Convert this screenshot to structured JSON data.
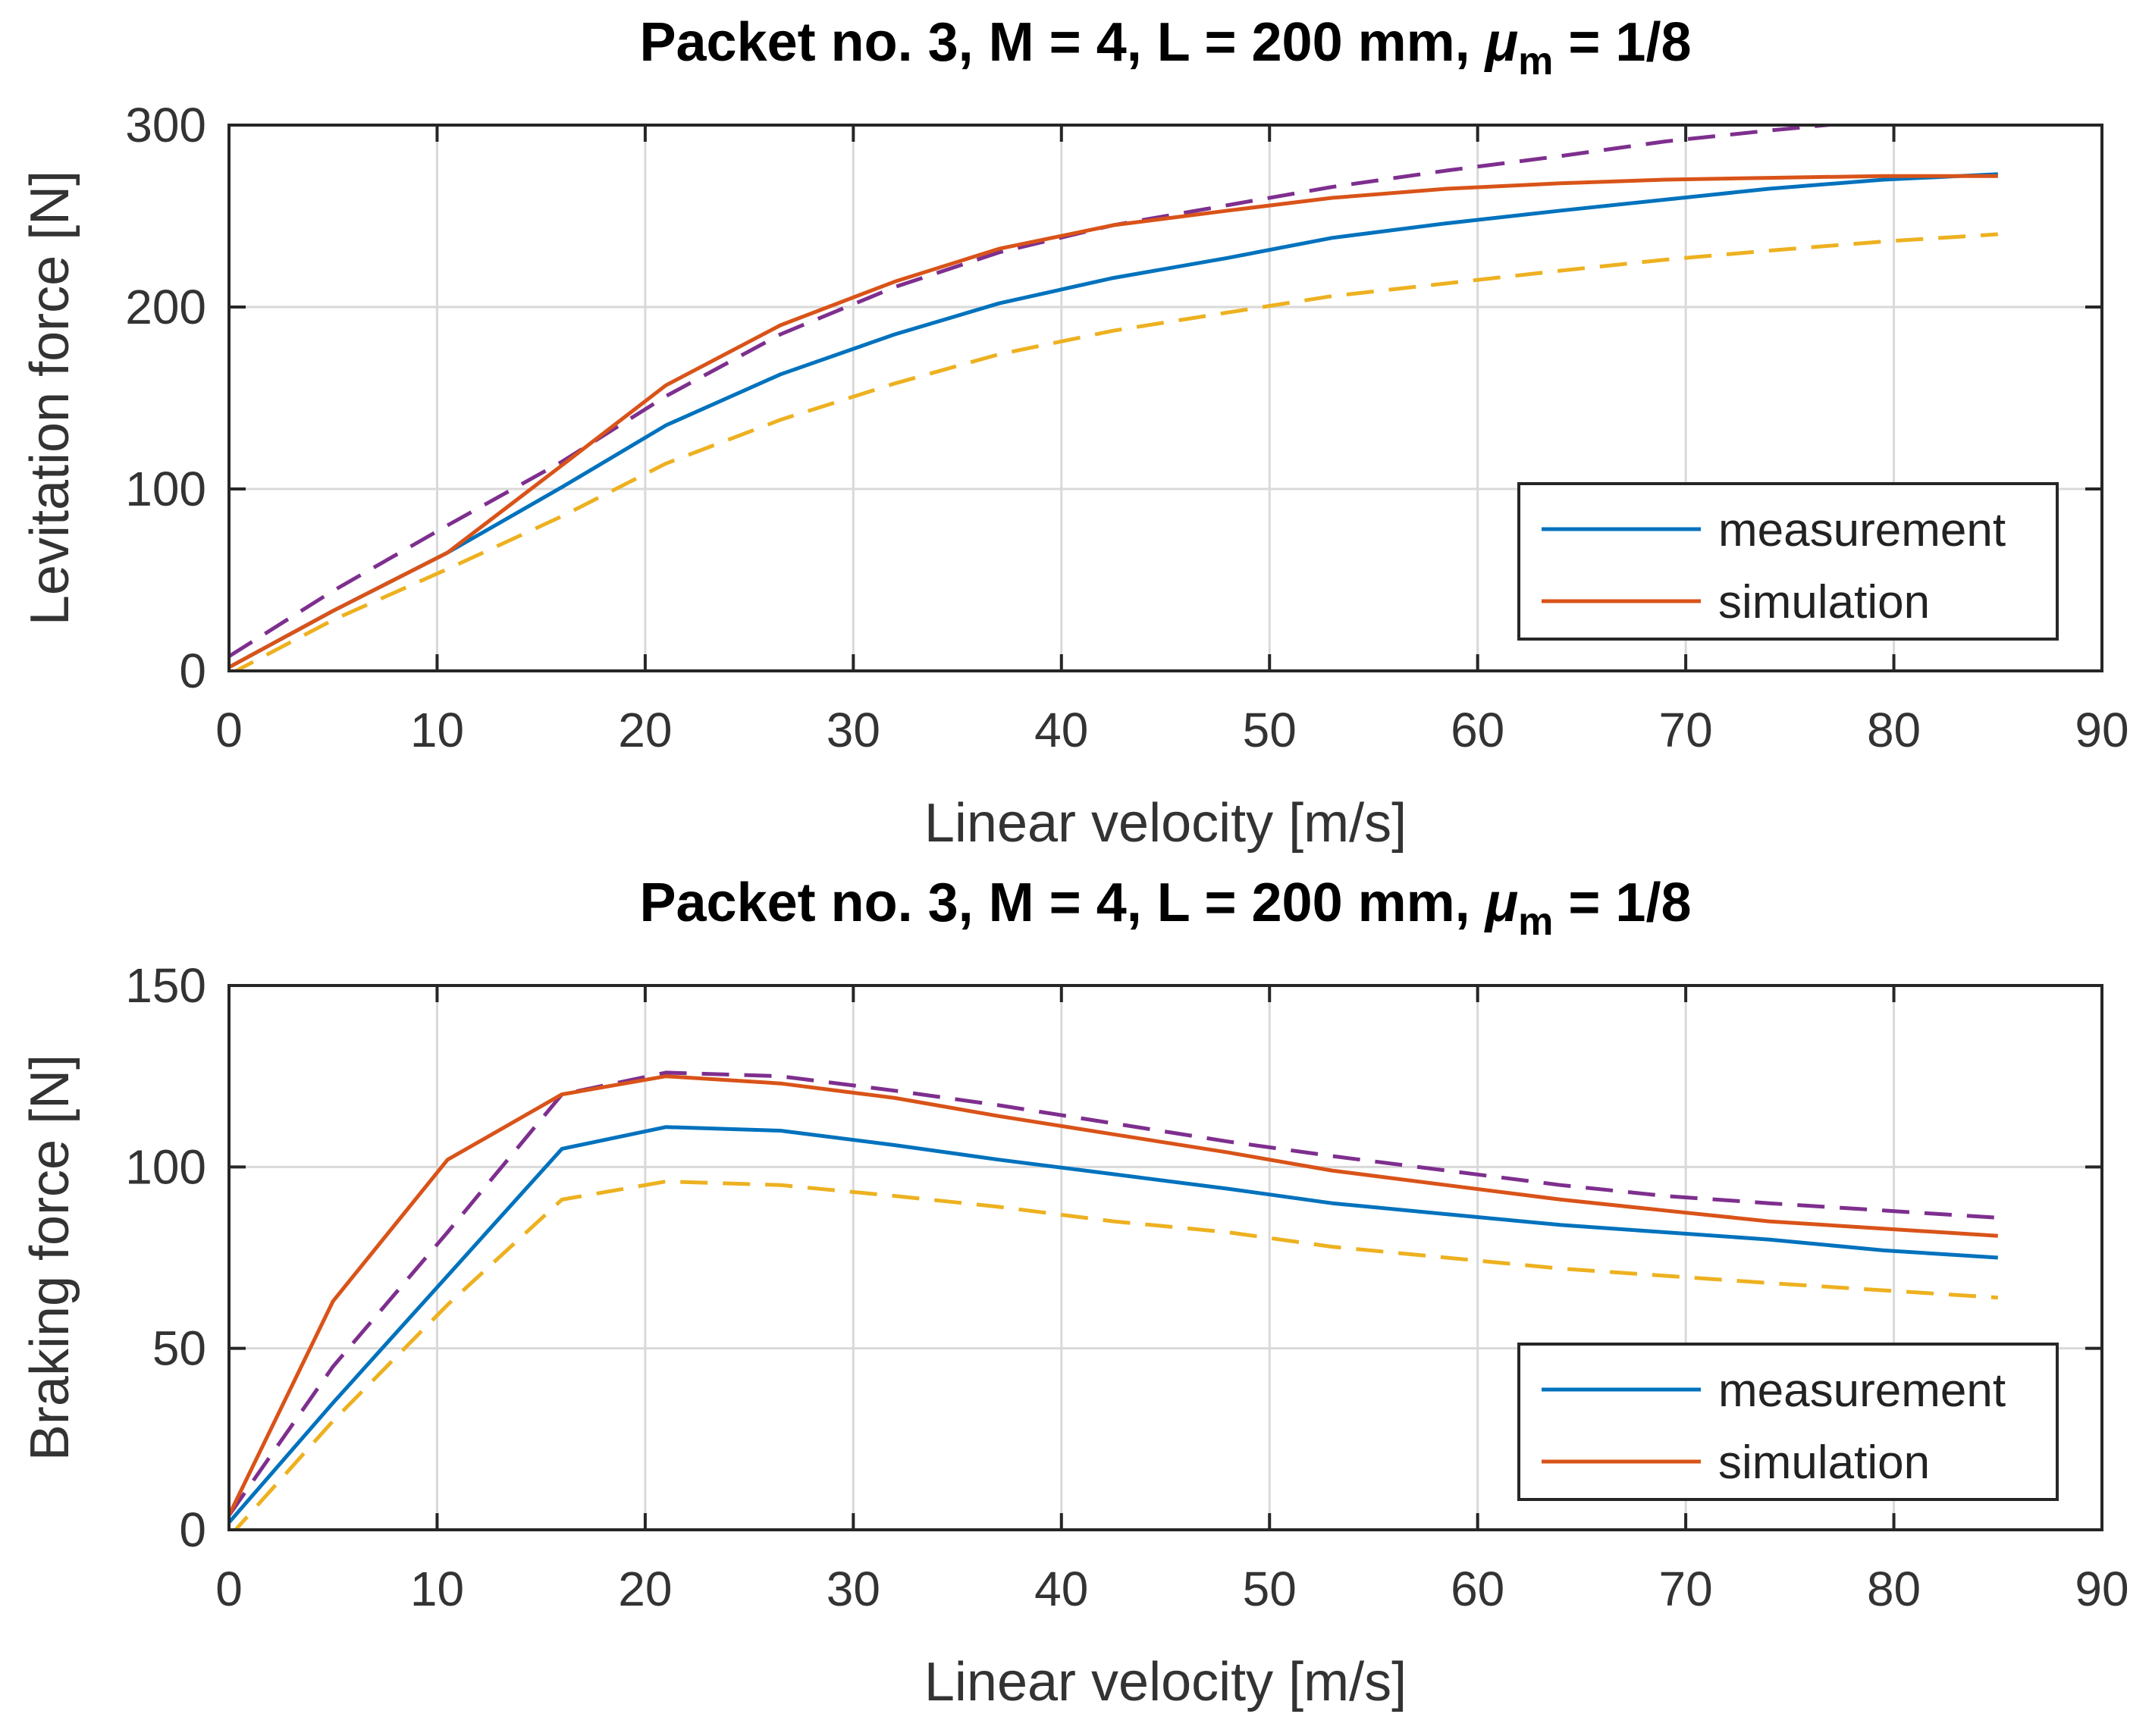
{
  "chart_data": [
    {
      "type": "line",
      "title": "Packet no. 3, M = 4, L = 200 mm, ",
      "title_symbol": "μ",
      "title_subscript": "m",
      "title_suffix": " = 1/8",
      "xlabel": "Linear velocity [m/s]",
      "ylabel": "Levitation force [N]",
      "xlim": [
        0,
        90
      ],
      "ylim": [
        0,
        300
      ],
      "xticks": [
        "0",
        "10",
        "20",
        "30",
        "40",
        "50",
        "60",
        "70",
        "80",
        "90"
      ],
      "yticks": [
        "0",
        "100",
        "200",
        "300"
      ],
      "grid": true,
      "legend_position": "bottom-right",
      "series": [
        {
          "name": "measurement",
          "color": "#0072BD",
          "dash": "solid",
          "in_legend": true,
          "x": [
            0,
            5,
            10.5,
            16,
            21,
            26.5,
            32,
            37,
            42.5,
            48,
            53,
            58.5,
            64,
            69,
            74,
            79.5,
            85
          ],
          "y": [
            2,
            33,
            65,
            101,
            135,
            163,
            185,
            202,
            216,
            227,
            238,
            246,
            253,
            259,
            265,
            270,
            273
          ]
        },
        {
          "name": "simulation",
          "color": "#D95319",
          "dash": "solid",
          "in_legend": true,
          "x": [
            0,
            5,
            10.5,
            16,
            21,
            26.5,
            32,
            37,
            42.5,
            48,
            53,
            58.5,
            64,
            69,
            74,
            79.5,
            85
          ],
          "y": [
            2,
            33,
            65,
            113,
            157,
            190,
            214,
            232,
            245,
            253,
            260,
            265,
            268,
            270,
            271,
            272,
            272
          ]
        },
        {
          "color": "#7E2F8E",
          "dash": "dashed",
          "in_legend": false,
          "x": [
            0,
            5,
            10.5,
            16,
            21,
            26.5,
            32,
            37,
            42.5,
            48,
            53,
            58.5,
            64,
            69,
            74,
            79.5,
            85
          ],
          "y": [
            8,
            44,
            80,
            115,
            151,
            185,
            211,
            230,
            245,
            256,
            266,
            275,
            283,
            291,
            297,
            303,
            307
          ]
        },
        {
          "color": "#EDB120",
          "dash": "dashed",
          "in_legend": false,
          "x": [
            0,
            5,
            10.5,
            16,
            21,
            26.5,
            32,
            37,
            42.5,
            48,
            53,
            58.5,
            64,
            69,
            74,
            79.5,
            85
          ],
          "y": [
            -2,
            28,
            56,
            85,
            114,
            138,
            158,
            174,
            187,
            197,
            206,
            213,
            220,
            226,
            231,
            236,
            240
          ]
        }
      ]
    },
    {
      "type": "line",
      "title": "Packet no. 3, M = 4, L = 200 mm, ",
      "title_symbol": "μ",
      "title_subscript": "m",
      "title_suffix": " = 1/8",
      "xlabel": "Linear velocity [m/s]",
      "ylabel": "Braking force [N]",
      "xlim": [
        0,
        90
      ],
      "ylim": [
        0,
        150
      ],
      "xticks": [
        "0",
        "10",
        "20",
        "30",
        "40",
        "50",
        "60",
        "70",
        "80",
        "90"
      ],
      "yticks": [
        "0",
        "50",
        "100",
        "150"
      ],
      "grid": true,
      "legend_position": "bottom-right",
      "series": [
        {
          "name": "measurement",
          "color": "#0072BD",
          "dash": "solid",
          "in_legend": true,
          "x": [
            0,
            5,
            10.5,
            16,
            21,
            26.5,
            32,
            37,
            42.5,
            48,
            53,
            58.5,
            64,
            69,
            74,
            79.5,
            85
          ],
          "y": [
            2,
            35,
            70,
            105,
            111,
            110,
            106,
            102,
            98,
            94,
            90,
            87,
            84,
            82,
            80,
            77,
            75
          ]
        },
        {
          "name": "simulation",
          "color": "#D95319",
          "dash": "solid",
          "in_legend": true,
          "x": [
            0,
            5,
            10.5,
            16,
            21,
            26.5,
            32,
            37,
            42.5,
            48,
            53,
            58.5,
            64,
            69,
            74,
            79.5,
            85
          ],
          "y": [
            4,
            63,
            102,
            120,
            125,
            123,
            119,
            114,
            109,
            104,
            99,
            95,
            91,
            88,
            85,
            83,
            81
          ]
        },
        {
          "color": "#7E2F8E",
          "dash": "dashed",
          "in_legend": false,
          "x": [
            0,
            5,
            10.5,
            16,
            21,
            26.5,
            32,
            37,
            42.5,
            48,
            53,
            58.5,
            64,
            69,
            74,
            79.5,
            85
          ],
          "y": [
            4,
            45,
            82,
            120,
            126,
            125,
            121,
            117,
            112,
            107,
            103,
            99,
            95,
            92,
            90,
            88,
            86
          ]
        },
        {
          "color": "#EDB120",
          "dash": "dashed",
          "in_legend": false,
          "x": [
            0,
            5,
            10.5,
            16,
            21,
            26.5,
            32,
            37,
            42.5,
            48,
            53,
            58.5,
            64,
            69,
            74,
            79.5,
            85
          ],
          "y": [
            -2,
            30,
            62,
            91,
            96,
            95,
            92,
            89,
            85,
            82,
            78,
            75,
            72,
            70,
            68,
            66,
            64
          ]
        }
      ]
    }
  ]
}
